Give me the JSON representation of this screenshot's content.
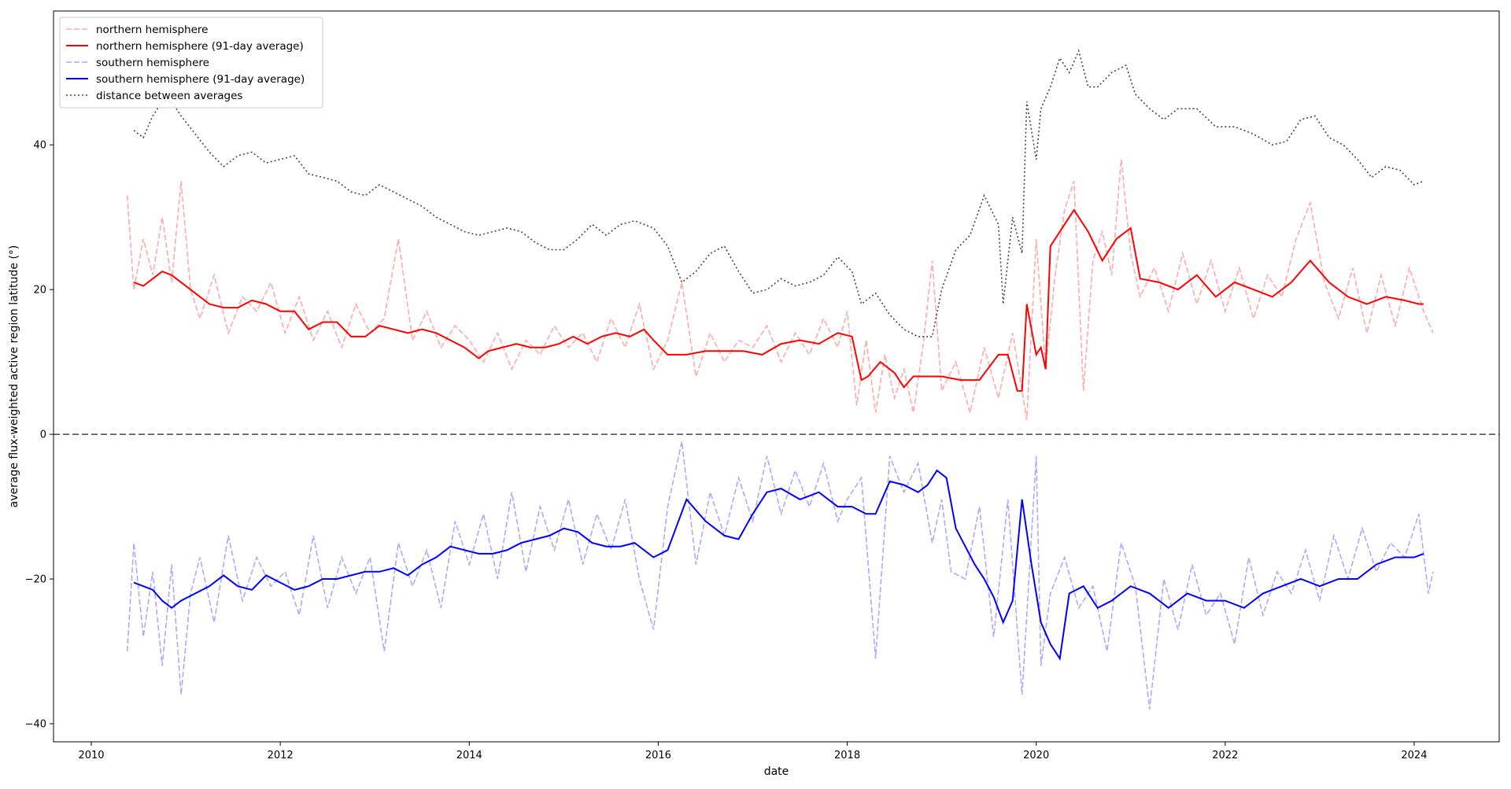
{
  "chart_data": {
    "type": "line",
    "xlabel": "date",
    "ylabel": "average flux-weighted active region latitude (°)",
    "xlim": [
      2009.6,
      2024.9
    ],
    "ylim": [
      -42.5,
      58.5
    ],
    "x_ticks": [
      2010,
      2012,
      2014,
      2016,
      2018,
      2020,
      2022,
      2024
    ],
    "x_tick_labels": [
      "2010",
      "2012",
      "2014",
      "2016",
      "2018",
      "2020",
      "2022",
      "2024"
    ],
    "y_ticks": [
      -40,
      -20,
      0,
      20,
      40
    ],
    "y_tick_labels": [
      "−40",
      "−20",
      "0",
      "20",
      "40"
    ],
    "zero_line": {
      "y": 0,
      "style": "dashed",
      "color": "#444444"
    },
    "grid": false,
    "legend_position": "top-left",
    "series": [
      {
        "name": "northern hemisphere",
        "style": "dashed",
        "color": "#ffaaaa",
        "x": [
          2010.38,
          2010.45,
          2010.55,
          2010.65,
          2010.75,
          2010.85,
          2010.95,
          2011.05,
          2011.15,
          2011.3,
          2011.45,
          2011.6,
          2011.75,
          2011.9,
          2012.05,
          2012.2,
          2012.35,
          2012.5,
          2012.65,
          2012.8,
          2012.95,
          2013.1,
          2013.25,
          2013.4,
          2013.55,
          2013.7,
          2013.85,
          2014.0,
          2014.15,
          2014.3,
          2014.45,
          2014.6,
          2014.75,
          2014.9,
          2015.05,
          2015.2,
          2015.35,
          2015.5,
          2015.65,
          2015.8,
          2015.95,
          2016.1,
          2016.25,
          2016.4,
          2016.55,
          2016.7,
          2016.85,
          2017.0,
          2017.15,
          2017.3,
          2017.45,
          2017.6,
          2017.75,
          2017.9,
          2018.0,
          2018.1,
          2018.2,
          2018.3,
          2018.4,
          2018.5,
          2018.6,
          2018.7,
          2018.8,
          2018.9,
          2019.0,
          2019.15,
          2019.3,
          2019.45,
          2019.6,
          2019.75,
          2019.9,
          2020.0,
          2020.1,
          2020.2,
          2020.3,
          2020.4,
          2020.5,
          2020.6,
          2020.7,
          2020.8,
          2020.9,
          2021.0,
          2021.1,
          2021.25,
          2021.4,
          2021.55,
          2021.7,
          2021.85,
          2022.0,
          2022.15,
          2022.3,
          2022.45,
          2022.6,
          2022.75,
          2022.9,
          2023.05,
          2023.2,
          2023.35,
          2023.5,
          2023.65,
          2023.8,
          2023.95,
          2024.1,
          2024.2
        ],
        "y": [
          33,
          20,
          27,
          22,
          30,
          21,
          35,
          20,
          16,
          22,
          14,
          19,
          17,
          21,
          14,
          19,
          13,
          17,
          12,
          18,
          14,
          16,
          27,
          13,
          17,
          12,
          15,
          13,
          10,
          14,
          9,
          13,
          11,
          15,
          12,
          14,
          10,
          16,
          12,
          18,
          9,
          13,
          21,
          8,
          14,
          10,
          13,
          12,
          15,
          10,
          14,
          11,
          16,
          12,
          17,
          4,
          13,
          3,
          11,
          5,
          9,
          3,
          12,
          24,
          6,
          10,
          3,
          12,
          5,
          14,
          2,
          27,
          9,
          22,
          31,
          35,
          6,
          24,
          28,
          22,
          38,
          25,
          19,
          23,
          17,
          25,
          18,
          24,
          17,
          23,
          16,
          22,
          19,
          27,
          32,
          21,
          16,
          23,
          14,
          22,
          15,
          23,
          17,
          14
        ]
      },
      {
        "name": "northern hemisphere (91-day average)",
        "style": "solid",
        "color": "#ff0000",
        "x": [
          2010.45,
          2010.55,
          2010.65,
          2010.75,
          2010.85,
          2010.95,
          2011.1,
          2011.25,
          2011.4,
          2011.55,
          2011.7,
          2011.85,
          2012.0,
          2012.15,
          2012.3,
          2012.45,
          2012.6,
          2012.75,
          2012.9,
          2013.05,
          2013.2,
          2013.35,
          2013.5,
          2013.65,
          2013.8,
          2013.95,
          2014.1,
          2014.2,
          2014.35,
          2014.5,
          2014.65,
          2014.8,
          2014.95,
          2015.1,
          2015.25,
          2015.4,
          2015.55,
          2015.7,
          2015.85,
          2015.95,
          2016.1,
          2016.3,
          2016.5,
          2016.7,
          2016.9,
          2017.1,
          2017.3,
          2017.5,
          2017.7,
          2017.9,
          2018.05,
          2018.15,
          2018.22,
          2018.35,
          2018.5,
          2018.6,
          2018.7,
          2018.85,
          2019.0,
          2019.2,
          2019.4,
          2019.6,
          2019.7,
          2019.8,
          2019.85,
          2019.9,
          2020.0,
          2020.05,
          2020.1,
          2020.15,
          2020.3,
          2020.4,
          2020.55,
          2020.7,
          2020.85,
          2021.0,
          2021.1,
          2021.3,
          2021.5,
          2021.7,
          2021.9,
          2022.1,
          2022.3,
          2022.5,
          2022.7,
          2022.9,
          2023.1,
          2023.3,
          2023.5,
          2023.7,
          2023.9,
          2024.05,
          2024.1
        ],
        "y": [
          21,
          20.5,
          21.5,
          22.5,
          22,
          21,
          19.5,
          18,
          17.5,
          17.5,
          18.5,
          18,
          17,
          17,
          14.5,
          15.5,
          15.5,
          13.5,
          13.5,
          15,
          14.5,
          14,
          14.5,
          14,
          13,
          12,
          10.5,
          11.5,
          12,
          12.5,
          12,
          12,
          12.5,
          13.5,
          12.5,
          13.5,
          14,
          13.5,
          14.5,
          13,
          11,
          11,
          11.5,
          11.5,
          11.5,
          11,
          12.5,
          13,
          12.5,
          14,
          13.5,
          7.5,
          8,
          10,
          8.5,
          6.5,
          8,
          8,
          8,
          7.5,
          7.5,
          11,
          11,
          6,
          6,
          18,
          11,
          12,
          9,
          26,
          29,
          31,
          28,
          24,
          27,
          28.5,
          21.5,
          21,
          20,
          22,
          19,
          21,
          20,
          19,
          21,
          24,
          21,
          19,
          18,
          19,
          18.5,
          18,
          18
        ]
      },
      {
        "name": "southern hemisphere",
        "style": "dashed",
        "color": "#aaaaff",
        "x": [
          2010.38,
          2010.45,
          2010.55,
          2010.65,
          2010.75,
          2010.85,
          2010.95,
          2011.05,
          2011.15,
          2011.3,
          2011.45,
          2011.6,
          2011.75,
          2011.9,
          2012.05,
          2012.2,
          2012.35,
          2012.5,
          2012.65,
          2012.8,
          2012.95,
          2013.1,
          2013.25,
          2013.4,
          2013.55,
          2013.7,
          2013.85,
          2014.0,
          2014.15,
          2014.3,
          2014.45,
          2014.6,
          2014.75,
          2014.9,
          2015.05,
          2015.2,
          2015.35,
          2015.5,
          2015.65,
          2015.8,
          2015.95,
          2016.1,
          2016.25,
          2016.4,
          2016.55,
          2016.7,
          2016.85,
          2017.0,
          2017.15,
          2017.3,
          2017.45,
          2017.6,
          2017.75,
          2017.9,
          2018.0,
          2018.15,
          2018.3,
          2018.45,
          2018.6,
          2018.75,
          2018.9,
          2019.0,
          2019.1,
          2019.25,
          2019.4,
          2019.55,
          2019.7,
          2019.85,
          2020.0,
          2020.05,
          2020.15,
          2020.3,
          2020.45,
          2020.6,
          2020.75,
          2020.9,
          2021.05,
          2021.2,
          2021.35,
          2021.5,
          2021.65,
          2021.8,
          2021.95,
          2022.1,
          2022.25,
          2022.4,
          2022.55,
          2022.7,
          2022.85,
          2023.0,
          2023.15,
          2023.3,
          2023.45,
          2023.6,
          2023.75,
          2023.9,
          2024.05,
          2024.15,
          2024.2
        ],
        "y": [
          -30,
          -15,
          -28,
          -19,
          -32,
          -18,
          -36,
          -22,
          -17,
          -26,
          -14,
          -23,
          -17,
          -21,
          -19,
          -25,
          -14,
          -24,
          -17,
          -22,
          -17,
          -30,
          -15,
          -21,
          -16,
          -24,
          -12,
          -18,
          -11,
          -20,
          -8,
          -19,
          -10,
          -16,
          -9,
          -18,
          -11,
          -16,
          -9,
          -20,
          -27,
          -10,
          -1,
          -18,
          -8,
          -14,
          -6,
          -12,
          -3,
          -11,
          -5,
          -10,
          -4,
          -12,
          -9,
          -6,
          -31,
          -3,
          -8,
          -4,
          -15,
          -9,
          -19,
          -20,
          -10,
          -28,
          -9,
          -36,
          -3,
          -32,
          -22,
          -17,
          -24,
          -21,
          -30,
          -15,
          -21,
          -38,
          -20,
          -27,
          -18,
          -25,
          -22,
          -29,
          -17,
          -25,
          -19,
          -22,
          -16,
          -23,
          -14,
          -20,
          -13,
          -19,
          -15,
          -17,
          -11,
          -22,
          -19
        ],
        "stroke_opacity": 0.9
      },
      {
        "name": "southern hemisphere (91-day average)",
        "style": "solid",
        "color": "#0000ff",
        "x": [
          2010.45,
          2010.55,
          2010.65,
          2010.75,
          2010.85,
          2010.95,
          2011.1,
          2011.25,
          2011.4,
          2011.55,
          2011.7,
          2011.85,
          2012.0,
          2012.15,
          2012.3,
          2012.45,
          2012.6,
          2012.75,
          2012.9,
          2013.05,
          2013.2,
          2013.35,
          2013.5,
          2013.65,
          2013.8,
          2013.95,
          2014.1,
          2014.25,
          2014.4,
          2014.55,
          2014.7,
          2014.85,
          2015.0,
          2015.15,
          2015.3,
          2015.45,
          2015.6,
          2015.75,
          2015.95,
          2016.1,
          2016.3,
          2016.5,
          2016.7,
          2016.85,
          2017.0,
          2017.15,
          2017.3,
          2017.5,
          2017.7,
          2017.9,
          2018.05,
          2018.2,
          2018.3,
          2018.45,
          2018.6,
          2018.75,
          2018.85,
          2018.95,
          2019.05,
          2019.15,
          2019.35,
          2019.45,
          2019.55,
          2019.65,
          2019.75,
          2019.85,
          2019.95,
          2020.05,
          2020.15,
          2020.25,
          2020.35,
          2020.5,
          2020.65,
          2020.8,
          2021.0,
          2021.2,
          2021.4,
          2021.6,
          2021.8,
          2022.0,
          2022.2,
          2022.4,
          2022.6,
          2022.8,
          2023.0,
          2023.2,
          2023.4,
          2023.6,
          2023.8,
          2024.0,
          2024.1
        ],
        "y": [
          -20.5,
          -21,
          -21.5,
          -23,
          -24,
          -23,
          -22,
          -21,
          -19.5,
          -21,
          -21.5,
          -19.5,
          -20.5,
          -21.5,
          -21,
          -20,
          -20,
          -19.5,
          -19,
          -19,
          -18.5,
          -19.5,
          -18,
          -17,
          -15.5,
          -16,
          -16.5,
          -16.5,
          -16,
          -15,
          -14.5,
          -14,
          -13,
          -13.5,
          -15,
          -15.5,
          -15.5,
          -15,
          -17,
          -16,
          -9,
          -12,
          -14,
          -14.5,
          -11,
          -8,
          -7.5,
          -9,
          -8,
          -10,
          -10,
          -11,
          -11,
          -6.5,
          -7,
          -8,
          -7,
          -5,
          -6,
          -13,
          -18,
          -20,
          -22.5,
          -26,
          -23,
          -9,
          -18,
          -26,
          -29,
          -31,
          -22,
          -21,
          -24,
          -23,
          -21,
          -22,
          -24,
          -22,
          -23,
          -23,
          -24,
          -22,
          -21,
          -20,
          -21,
          -20,
          -20,
          -18,
          -17,
          -17,
          -16.5
        ]
      },
      {
        "name": "distance between averages",
        "style": "dotted",
        "color": "#444444",
        "x": [
          2010.45,
          2010.55,
          2010.65,
          2010.75,
          2010.85,
          2010.95,
          2011.1,
          2011.25,
          2011.4,
          2011.55,
          2011.7,
          2011.85,
          2012.0,
          2012.15,
          2012.3,
          2012.45,
          2012.6,
          2012.75,
          2012.9,
          2013.05,
          2013.2,
          2013.35,
          2013.5,
          2013.65,
          2013.8,
          2013.95,
          2014.1,
          2014.25,
          2014.4,
          2014.55,
          2014.7,
          2014.85,
          2015.0,
          2015.15,
          2015.3,
          2015.45,
          2015.6,
          2015.75,
          2015.95,
          2016.1,
          2016.25,
          2016.4,
          2016.55,
          2016.7,
          2016.85,
          2017.0,
          2017.15,
          2017.3,
          2017.45,
          2017.6,
          2017.75,
          2017.9,
          2018.05,
          2018.15,
          2018.3,
          2018.45,
          2018.6,
          2018.75,
          2018.9,
          2019.0,
          2019.15,
          2019.3,
          2019.45,
          2019.6,
          2019.65,
          2019.75,
          2019.85,
          2019.9,
          2020.0,
          2020.05,
          2020.15,
          2020.25,
          2020.35,
          2020.45,
          2020.55,
          2020.65,
          2020.8,
          2020.95,
          2021.05,
          2021.2,
          2021.35,
          2021.5,
          2021.7,
          2021.9,
          2022.1,
          2022.3,
          2022.5,
          2022.65,
          2022.8,
          2022.95,
          2023.1,
          2023.25,
          2023.4,
          2023.55,
          2023.7,
          2023.85,
          2024.0,
          2024.1
        ],
        "y": [
          42,
          41,
          44,
          46,
          46,
          44,
          41.5,
          39,
          37,
          38.5,
          39,
          37.5,
          38,
          38.5,
          36,
          35.5,
          35,
          33.5,
          33,
          34.5,
          33.5,
          32.5,
          31.5,
          30,
          29,
          28,
          27.5,
          28,
          28.5,
          28,
          26.5,
          25.5,
          25.5,
          27,
          29,
          27.5,
          29,
          29.5,
          28.5,
          26,
          21,
          22.5,
          25,
          26,
          22.5,
          19.5,
          20,
          21.5,
          20.5,
          21,
          22,
          24.5,
          22.5,
          18,
          19.5,
          16.5,
          14.5,
          13.5,
          13.5,
          20,
          25.5,
          27.5,
          33,
          29,
          18,
          30,
          25,
          46,
          38,
          45,
          48,
          52,
          50,
          53,
          48,
          48,
          50,
          51,
          47,
          45,
          43.5,
          45,
          45,
          42.5,
          42.5,
          41.5,
          40,
          40.5,
          43.5,
          44,
          41,
          40,
          38,
          35.5,
          37,
          36.5,
          34.5,
          35
        ]
      }
    ]
  }
}
